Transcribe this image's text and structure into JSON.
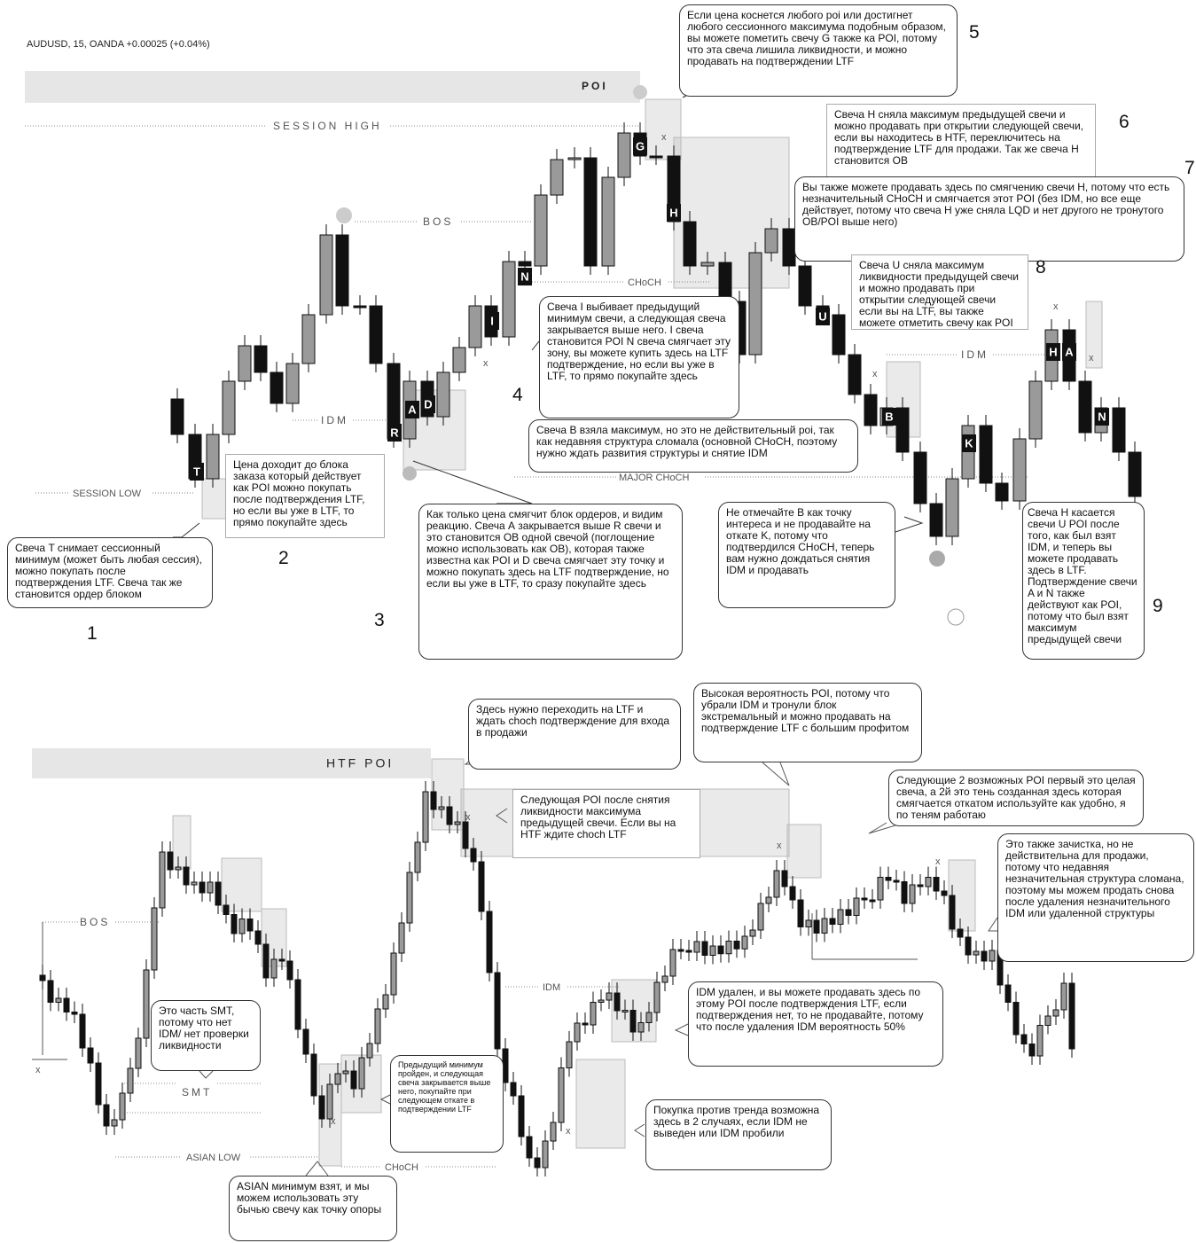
{
  "header": {
    "instrument": "AUDUSD, 15, OANDA  +0.00025 (+0.04%)"
  },
  "top_chart": {
    "zone_label": "POI",
    "levels": {
      "session_high": "SESSION HIGH",
      "bos": "BOS",
      "idm": "IDM",
      "session_low": "SESSION LOW",
      "choch": "CHoCH",
      "major_choch": "MAJOR CHoCH",
      "idm_right": "IDM"
    },
    "x_mark": "x",
    "candle_letters": [
      "T",
      "R",
      "A",
      "D",
      "I",
      "N",
      "G",
      "H",
      "U",
      "B",
      "K",
      "H",
      "A",
      "N"
    ],
    "callouts": [
      {
        "number": "1",
        "text": "Свеча T снимает сессионный минимум (может быть любая сессия), можно покупать после подтверждения LTF. Свеча так же становится ордер блоком"
      },
      {
        "number": "2",
        "text": "Цена доходит до блока заказа который действует как POI  можно покупать после подтверждения LTF, но если вы уже в LTF, то прямо покупайте здесь"
      },
      {
        "number": "3",
        "text": "Как только цена смягчит блок ордеров, и видим реакцию. Свеча А закрывается выше R свечи и это становится OB одной свечой (поглощение можно использовать как OB), которая также известна как POI и D свеча смягчает эту точку и можно покупать здесь на LTF подтверждение, но если вы уже в LTF, то сразу покупайте здесь"
      },
      {
        "number": "4",
        "text": "Свеча I выбивает предыдущий минимум свечи, а следующая свеча закрывается выше него. I свеча становится POI  N свеча смягчает эту зону, вы можете купить здесь на LTF подтверждение, но если вы уже в LTF, то прямо покупайте здесь"
      },
      {
        "number": "5",
        "text": "Если цена коснется любого poi или достигнет любого сессионного максимума подобным образом, вы можете пометить свечу G также ка POI, потому что эта свеча лишила ликвидности,  и можно продавать на подтверждении LTF"
      },
      {
        "number": "6",
        "text": "Свеча H сняла максимум предыдущей свечи и можно продавать при открытии следующей свечи, если вы находитесь в HTF, переключитесь на подтверждение LTF для продажи. Так же свеча H становится OB"
      },
      {
        "number": "7",
        "text": "Вы также можете продавать здесь по смягчению свечи H, потому что есть незначительный  CHoCH и смягчается этот POI (без IDM, но все еще действует, потому что свеча H уже сняла LQD и нет другого не тронутого OB/POI выше него)"
      },
      {
        "number": "8",
        "text": "Свеча U сняла максимум ликвидности предыдущей свечи и можно продавать при открытии следующей свечи если вы на LTF, вы также можете отметить свечу как POI"
      },
      {
        "number": "9",
        "text": "Свеча H касается свечи U POI  после того, как был взят IDM,  и теперь вы можете продавать здесь в LTF. Подтверждение свечи A и N также действуют как POI, потому что был взят максимум предыдущей свечи"
      }
    ],
    "note_b": "Свеча B взяла максимум, но это не действительный poi, так как недавняя структура сломала (основной CHoCH, поэтому нужно ждать развития структуры и снятие IDM",
    "note_k": "Не отмечайте B  как точку интереса и не продавайте на откате K, потому что подтвердился CHoCH, теперь вам нужно дождаться снятия IDM  и продавать"
  },
  "bottom_chart": {
    "zone_label": "HTF POI",
    "levels": {
      "bos": "BOS",
      "smt": "SMT",
      "asian_low": "ASIAN LOW",
      "choch": "CHoCH",
      "idm": "IDM"
    },
    "callouts": [
      "Здесь нужно переходить на LTF и ждать choch подтверждение для входа в продажи",
      "Высокая вероятность POI, потому что убрали IDM и тронули  блок экстремальный и можно продавать на подтверждение LTF с большим профитом",
      "Следующая  POI после снятия ликвидности максимума предыдущей свечи. Если вы на HTF ждите choch LTF",
      "Следующие 2 возможных POI первый это целая свеча, а 2й это тень созданная здесь которая смягчается откатом используйте как удобно, я по теням работаю",
      "Это также зачистка, но не действительна для продажи, потому что недавняя незначительная структура сломана, поэтому мы можем продать снова после удаления незначительного IDM или  удаленной структуры",
      "Это часть SMT, потому что нет IDM/ нет проверки ликвидности",
      "Предыдущий минимум пройден, и следующая свеча закрывается выше него, покупайте при следующем откате в подтверждении LTF",
      "IDM удален, и вы можете продавать здесь по этому POI после подтверждения LTF, если подтверждения нет, то не продавайте, потому что после удаления IDM вероятность 50%",
      "Покупка против тренда возможна здесь в 2 случаях, если IDM не выведен или IDM пробили",
      "ASIAN минимум взят, и мы можем использовать эту бычью свечу как точку опоры"
    ]
  }
}
